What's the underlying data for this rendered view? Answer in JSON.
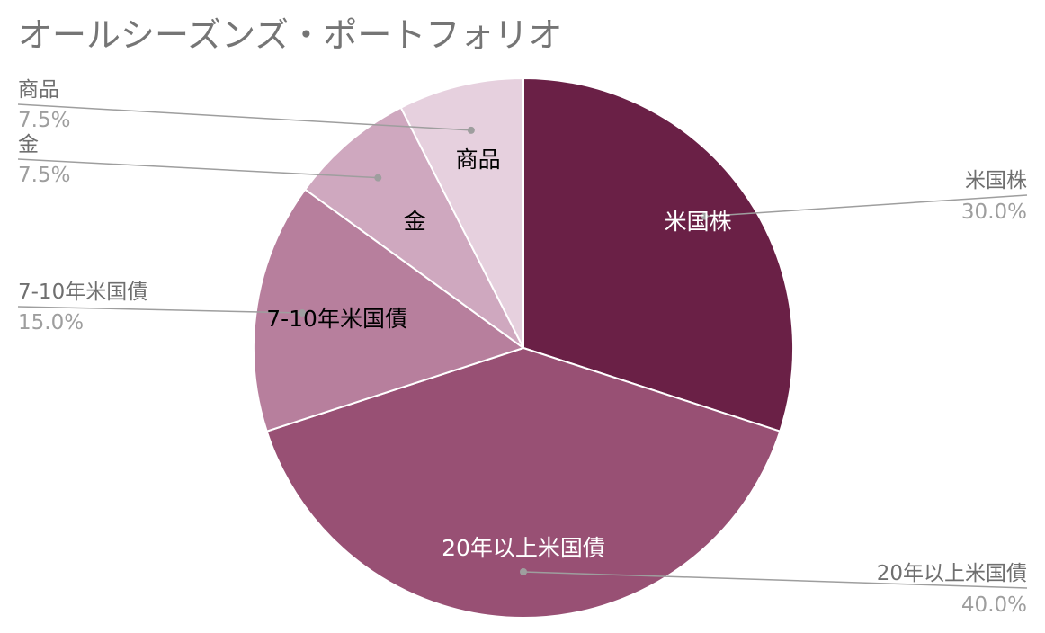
{
  "chart_data": {
    "type": "pie",
    "title": "オールシーズンズ・ポートフォリオ",
    "slices": [
      {
        "label": "米国株",
        "value": 30.0,
        "percent_label": "30.0%",
        "color": "#6a2046",
        "inner_text_color": "#ffffff"
      },
      {
        "label": "20年以上米国債",
        "value": 40.0,
        "percent_label": "40.0%",
        "color": "#985074",
        "inner_text_color": "#ffffff"
      },
      {
        "label": "7-10年米国債",
        "value": 15.0,
        "percent_label": "15.0%",
        "color": "#b77f9d",
        "inner_text_color": "#000000"
      },
      {
        "label": "金",
        "value": 7.5,
        "percent_label": "7.5%",
        "color": "#cfa8bf",
        "inner_text_color": "#000000"
      },
      {
        "label": "商品",
        "value": 7.5,
        "percent_label": "7.5%",
        "color": "#e6d0de",
        "inner_text_color": "#000000"
      }
    ],
    "legend": "none",
    "label_position": "inside-and-outside"
  }
}
